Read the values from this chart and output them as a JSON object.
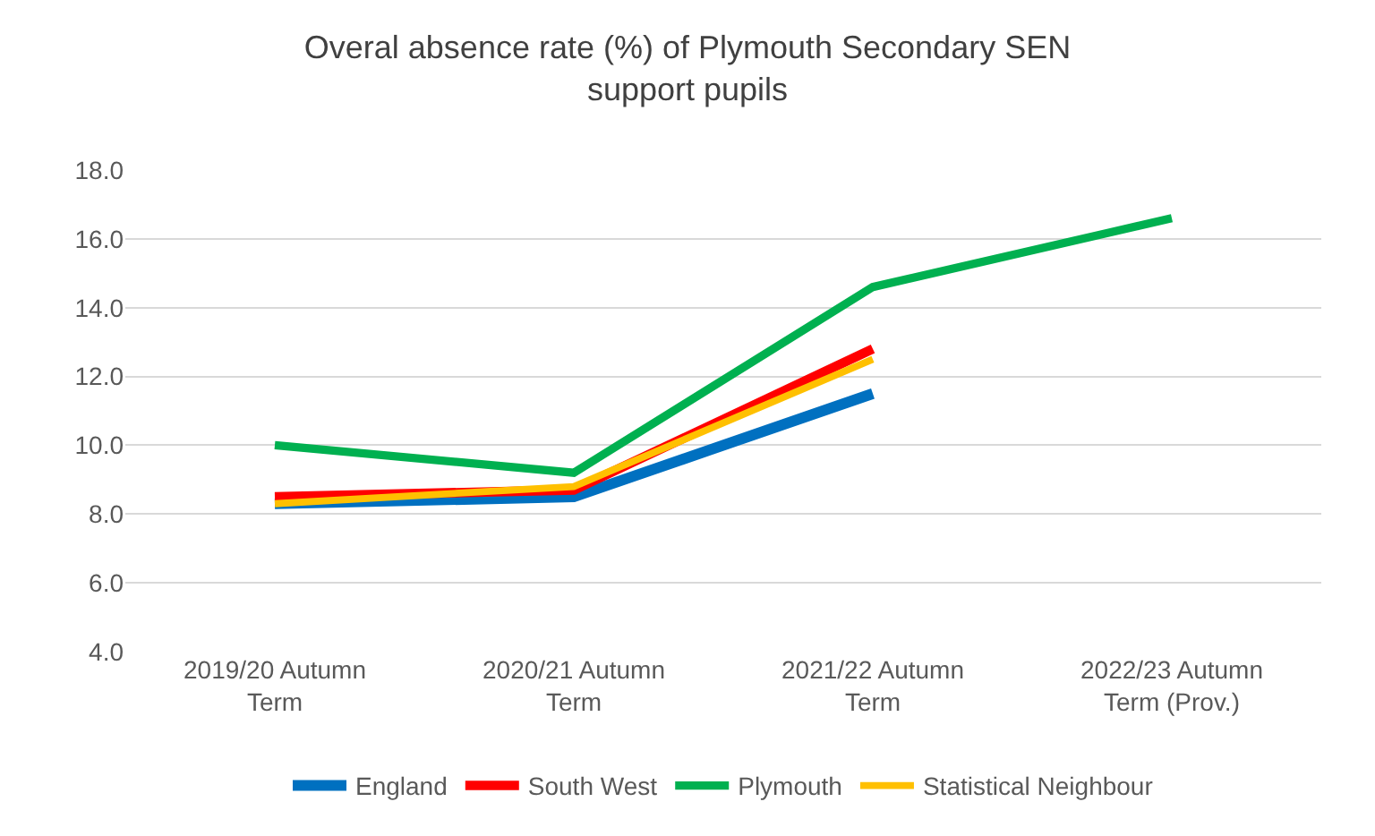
{
  "chart_data": {
    "type": "line",
    "title": "Overal absence rate (%) of Plymouth Secondary SEN support pupils",
    "categories": [
      "2019/20 Autumn Term",
      "2020/21 Autumn Term",
      "2021/22 Autumn Term",
      "2022/23 Autumn Term (Prov.)"
    ],
    "series": [
      {
        "name": "England",
        "color": "#0070c0",
        "values": [
          8.3,
          8.5,
          11.5,
          null
        ]
      },
      {
        "name": "South West",
        "color": "#ff0000",
        "values": [
          8.5,
          8.7,
          12.8,
          null
        ]
      },
      {
        "name": "Plymouth",
        "color": "#00b050",
        "values": [
          10.0,
          9.2,
          14.6,
          16.6
        ]
      },
      {
        "name": "Statistical Neighbour",
        "color": "#ffc000",
        "values": [
          8.3,
          8.8,
          12.5,
          null
        ]
      }
    ],
    "ylim": [
      4,
      18
    ],
    "yticks": [
      {
        "value": 4,
        "label": "4.0"
      },
      {
        "value": 6,
        "label": "6.0"
      },
      {
        "value": 8,
        "label": "8.0"
      },
      {
        "value": 10,
        "label": "10.0"
      },
      {
        "value": 12,
        "label": "12.0"
      },
      {
        "value": 14,
        "label": "14.0"
      },
      {
        "value": 16,
        "label": "16.0"
      },
      {
        "value": 18,
        "label": "18.0"
      }
    ],
    "grid": "y",
    "legend": "bottom",
    "marker": "none",
    "line_style": "solid"
  }
}
